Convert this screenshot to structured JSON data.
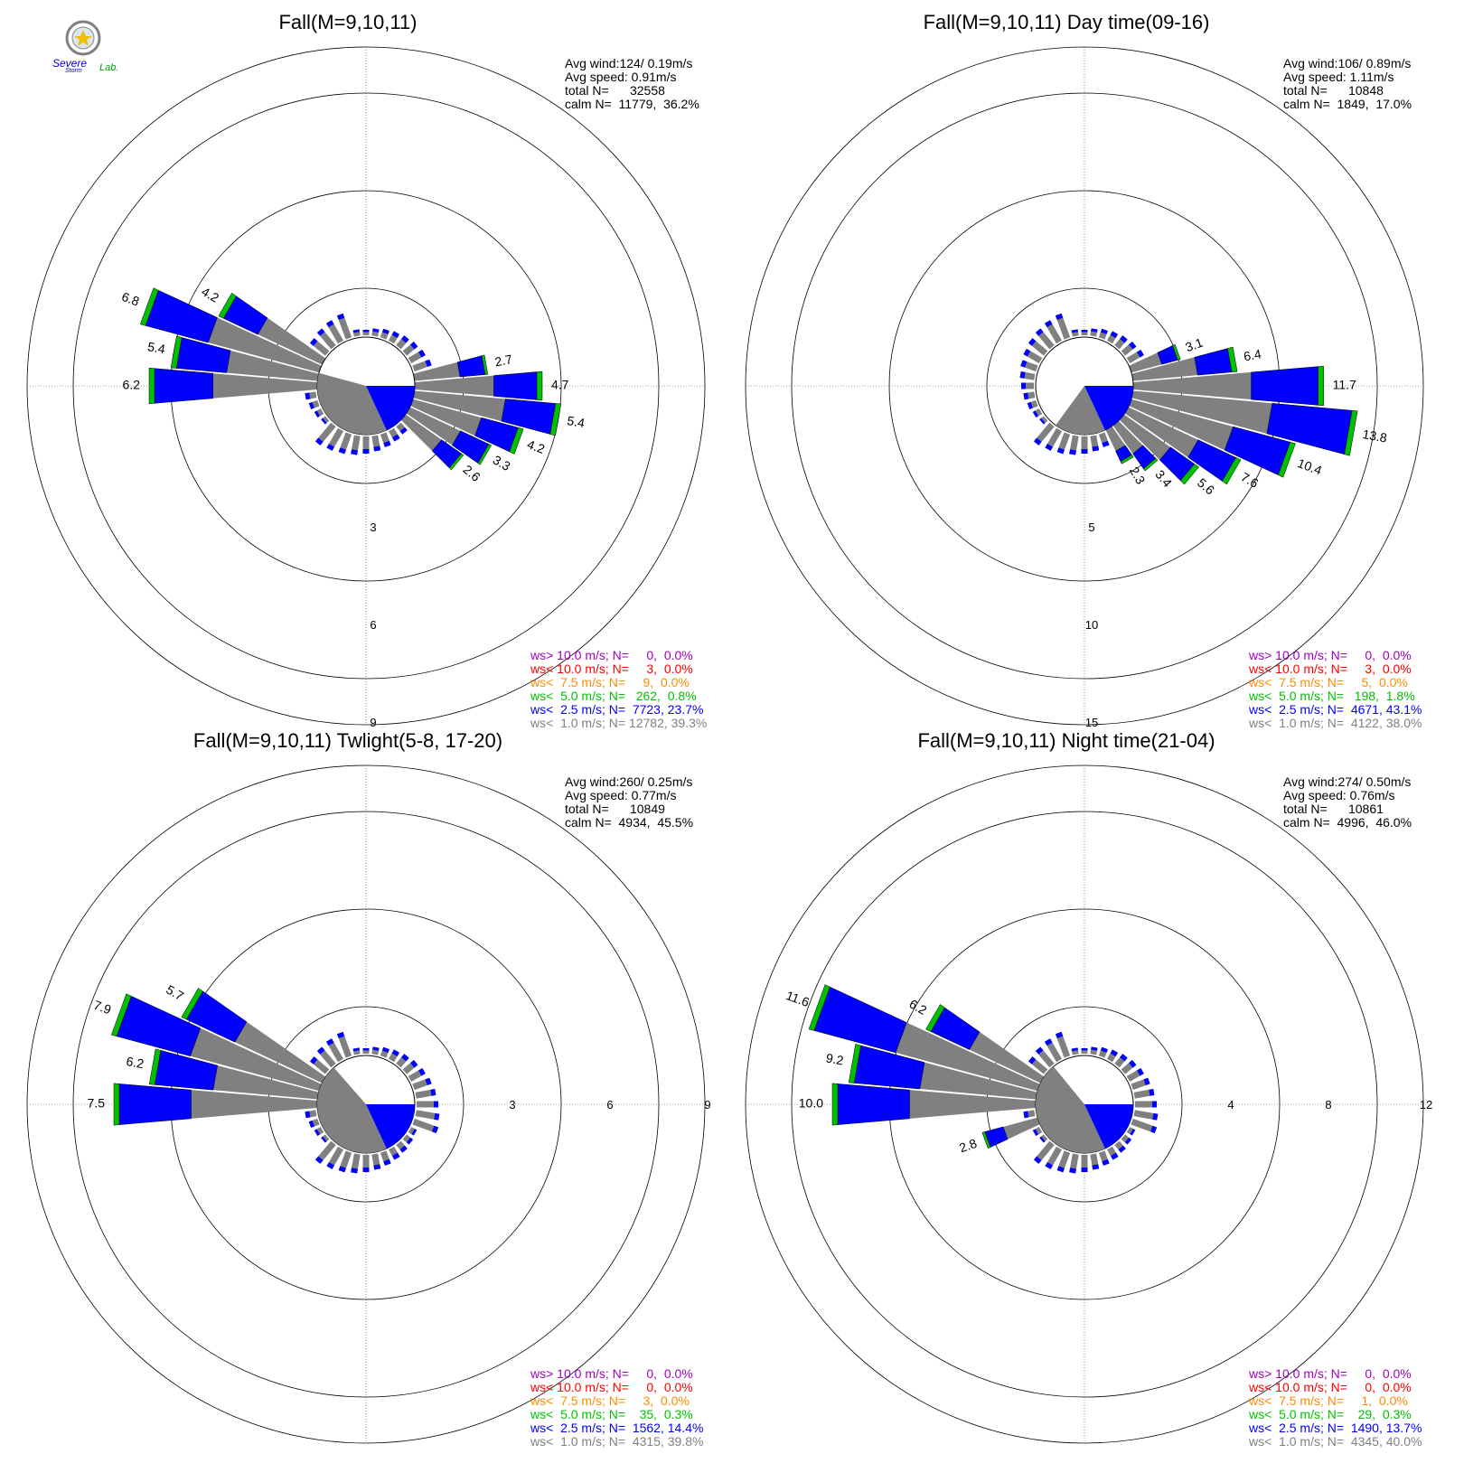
{
  "logo": {
    "text_severe": "Severe",
    "text_storm": "Storm",
    "text_lab": "Lab."
  },
  "colors": {
    "calm": "#808080",
    "ws1": "#808080",
    "ws2": "#0000ff",
    "ws3": "#00c000",
    "ws4": "#ff8c00",
    "ws5": "#ff0000",
    "ws6": "#a000c0"
  },
  "chart_data": [
    {
      "type": "wind-rose",
      "title": "Fall(M=9,10,11)",
      "info": [
        "Avg wind:124/ 0.19m/s",
        "Avg speed: 0.91m/s",
        "total N=      32558",
        "calm N=  11779,  36.2%"
      ],
      "rings": [
        "3",
        "6",
        "9"
      ],
      "ring_values": [
        3,
        6,
        9
      ],
      "ring_label_pos": "bottom",
      "calm_pct": 36.2,
      "legend": [
        {
          "text": "ws> 10.0 m/s; N=     0,  0.0%",
          "color": "#a000c0"
        },
        {
          "text": "ws< 10.0 m/s; N=     3,  0.0%",
          "color": "#ff0000"
        },
        {
          "text": "ws<  7.5 m/s; N=     9,  0.0%",
          "color": "#ff8c00"
        },
        {
          "text": "ws<  5.0 m/s; N=   262,  0.8%",
          "color": "#00c000"
        },
        {
          "text": "ws<  2.5 m/s; N=  7723, 23.7%",
          "color": "#0000ff"
        },
        {
          "text": "ws<  1.0 m/s; N= 12782, 39.3%",
          "color": "#808080"
        }
      ],
      "bars": [
        {
          "dir": 80,
          "total": 2.7,
          "label": "2.7"
        },
        {
          "dir": 90,
          "total": 4.7,
          "label": "4.7"
        },
        {
          "dir": 100,
          "total": 5.4,
          "label": "5.4"
        },
        {
          "dir": 110,
          "total": 4.2,
          "label": "4.2"
        },
        {
          "dir": 120,
          "total": 3.3,
          "label": "3.3"
        },
        {
          "dir": 130,
          "total": 2.6,
          "label": "2.6"
        },
        {
          "dir": 270,
          "total": 6.2,
          "label": "6.2"
        },
        {
          "dir": 280,
          "total": 5.4,
          "label": "5.4"
        },
        {
          "dir": 290,
          "total": 6.8,
          "label": "6.8"
        },
        {
          "dir": 300,
          "total": 4.2,
          "label": "4.2"
        }
      ]
    },
    {
      "type": "wind-rose",
      "title": "Fall(M=9,10,11) Day time(09-16)",
      "info": [
        "Avg wind:106/ 0.89m/s",
        "Avg speed: 1.11m/s",
        "total N=      10848",
        "calm N=  1849,  17.0%"
      ],
      "rings": [
        "5",
        "10",
        "15"
      ],
      "ring_values": [
        5,
        10,
        15
      ],
      "ring_label_pos": "bottom",
      "calm_pct": 17.0,
      "legend": [
        {
          "text": "ws> 10.0 m/s; N=     0,  0.0%",
          "color": "#a000c0"
        },
        {
          "text": "ws< 10.0 m/s; N=     3,  0.0%",
          "color": "#ff0000"
        },
        {
          "text": "ws<  7.5 m/s; N=     5,  0.0%",
          "color": "#ff8c00"
        },
        {
          "text": "ws<  5.0 m/s; N=   198,  1.8%",
          "color": "#00c000"
        },
        {
          "text": "ws<  2.5 m/s; N=  4671, 43.1%",
          "color": "#0000ff"
        },
        {
          "text": "ws<  1.0 m/s; N=  4122, 38.0%",
          "color": "#808080"
        }
      ],
      "bars": [
        {
          "dir": 70,
          "total": 3.1,
          "label": "3.1"
        },
        {
          "dir": 80,
          "total": 6.4,
          "label": "6.4"
        },
        {
          "dir": 90,
          "total": 11.7,
          "label": "11.7"
        },
        {
          "dir": 100,
          "total": 13.8,
          "label": "13.8"
        },
        {
          "dir": 110,
          "total": 10.4,
          "label": "10.4"
        },
        {
          "dir": 120,
          "total": 7.6,
          "label": "7.6"
        },
        {
          "dir": 130,
          "total": 5.6,
          "label": "5.6"
        },
        {
          "dir": 140,
          "total": 3.4,
          "label": "3.4"
        },
        {
          "dir": 150,
          "total": 2.3,
          "label": "2.3"
        }
      ]
    },
    {
      "type": "wind-rose",
      "title": "Fall(M=9,10,11) Twlight(5-8, 17-20)",
      "info": [
        "Avg wind:260/ 0.25m/s",
        "Avg speed: 0.77m/s",
        "total N=      10849",
        "calm N=  4934,  45.5%"
      ],
      "rings": [
        "3",
        "6",
        "9"
      ],
      "ring_values": [
        3,
        6,
        9
      ],
      "ring_label_pos": "right",
      "calm_pct": 45.5,
      "legend": [
        {
          "text": "ws> 10.0 m/s; N=     0,  0.0%",
          "color": "#a000c0"
        },
        {
          "text": "ws< 10.0 m/s; N=     0,  0.0%",
          "color": "#ff0000"
        },
        {
          "text": "ws<  7.5 m/s; N=     3,  0.0%",
          "color": "#ff8c00"
        },
        {
          "text": "ws<  5.0 m/s; N=    35,  0.3%",
          "color": "#00c000"
        },
        {
          "text": "ws<  2.5 m/s; N=  1562, 14.4%",
          "color": "#0000ff"
        },
        {
          "text": "ws<  1.0 m/s; N=  4315, 39.8%",
          "color": "#808080"
        }
      ],
      "bars": [
        {
          "dir": 270,
          "total": 7.5,
          "label": "7.5"
        },
        {
          "dir": 280,
          "total": 6.2,
          "label": "6.2"
        },
        {
          "dir": 290,
          "total": 7.9,
          "label": "7.9"
        },
        {
          "dir": 300,
          "total": 5.7,
          "label": "5.7"
        }
      ]
    },
    {
      "type": "wind-rose",
      "title": "Fall(M=9,10,11) Night time(21-04)",
      "info": [
        "Avg wind:274/ 0.50m/s",
        "Avg speed: 0.76m/s",
        "total N=      10861",
        "calm N=  4996,  46.0%"
      ],
      "rings": [
        "4",
        "8",
        "12"
      ],
      "ring_values": [
        4,
        8,
        12
      ],
      "ring_label_pos": "right",
      "calm_pct": 46.0,
      "legend": [
        {
          "text": "ws> 10.0 m/s; N=     0,  0.0%",
          "color": "#a000c0"
        },
        {
          "text": "ws< 10.0 m/s; N=     0,  0.0%",
          "color": "#ff0000"
        },
        {
          "text": "ws<  7.5 m/s; N=     1,  0.0%",
          "color": "#ff8c00"
        },
        {
          "text": "ws<  5.0 m/s; N=    29,  0.3%",
          "color": "#00c000"
        },
        {
          "text": "ws<  2.5 m/s; N=  1490, 13.7%",
          "color": "#0000ff"
        },
        {
          "text": "ws<  1.0 m/s; N=  4345, 40.0%",
          "color": "#808080"
        }
      ],
      "bars": [
        {
          "dir": 250,
          "total": 2.8,
          "label": "2.8"
        },
        {
          "dir": 270,
          "total": 10.0,
          "label": "10.0"
        },
        {
          "dir": 280,
          "total": 9.2,
          "label": "9.2"
        },
        {
          "dir": 290,
          "total": 11.6,
          "label": "11.6"
        },
        {
          "dir": 300,
          "total": 6.2,
          "label": "6.2"
        }
      ]
    }
  ]
}
